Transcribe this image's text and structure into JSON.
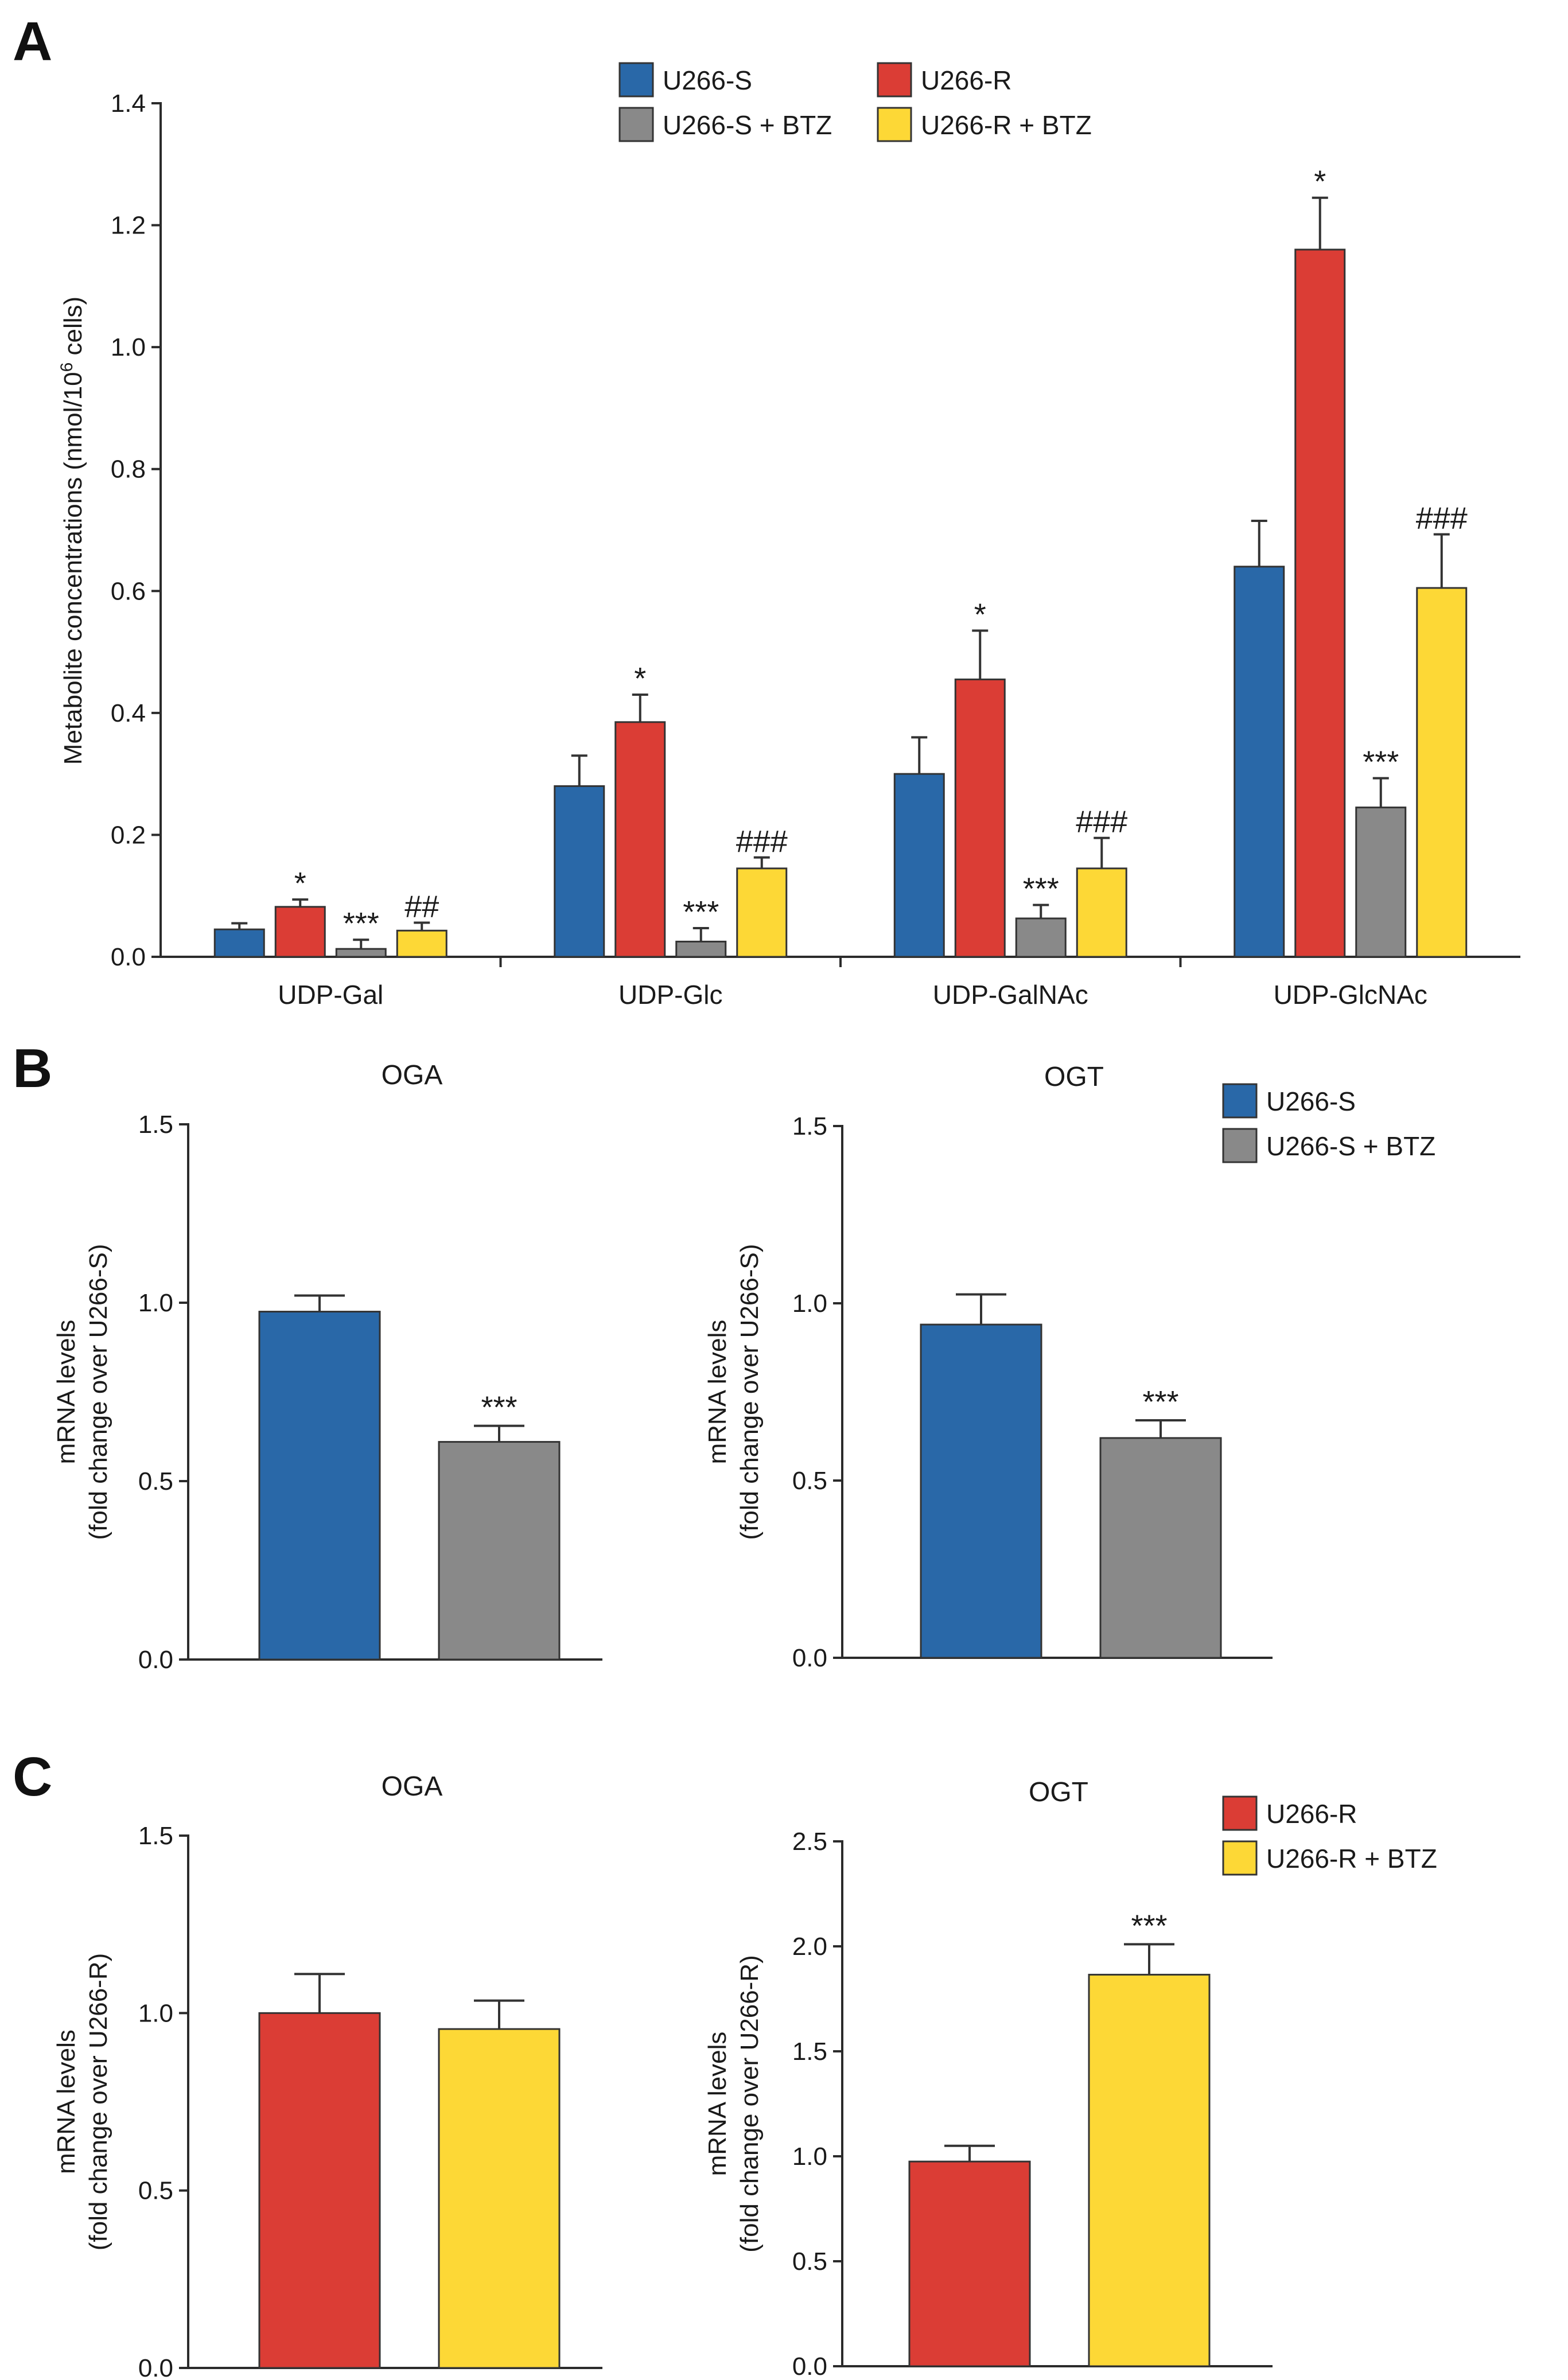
{
  "panels": {
    "a": "A",
    "b": "B",
    "c": "C"
  },
  "legend_a": {
    "items": [
      {
        "label": "U266-S",
        "color": "#2968a8"
      },
      {
        "label": "U266-R",
        "color": "#db3d35"
      },
      {
        "label": "U266-S + BTZ",
        "color": "#898989"
      },
      {
        "label": "U266-R + BTZ",
        "color": "#fdd836"
      }
    ]
  },
  "legend_b": {
    "items": [
      {
        "label": "U266-S",
        "color": "#2968a8"
      },
      {
        "label": "U266-S + BTZ",
        "color": "#898989"
      }
    ]
  },
  "legend_c": {
    "items": [
      {
        "label": "U266-R",
        "color": "#db3d35"
      },
      {
        "label": "U266-R + BTZ",
        "color": "#fdd836"
      }
    ]
  },
  "chart_data": [
    {
      "id": "A",
      "type": "bar",
      "ylabel_main": "Metabolite concentrations (nmol/10",
      "ylabel_sup": "6",
      "ylabel_tail": " cells)",
      "ylim": [
        0,
        1.4
      ],
      "yticks": [
        "0.0",
        "0.2",
        "0.4",
        "0.6",
        "0.8",
        "1.0",
        "1.2",
        "1.4"
      ],
      "categories": [
        "UDP-Gal",
        "UDP-Glc",
        "UDP-GalNAc",
        "UDP-GlcNAc"
      ],
      "series": [
        {
          "name": "U266-S",
          "color": "#2968a8",
          "values": [
            0.045,
            0.28,
            0.3,
            0.64
          ],
          "errors": [
            0.01,
            0.05,
            0.06,
            0.075
          ],
          "sig": [
            "",
            "",
            "",
            ""
          ]
        },
        {
          "name": "U266-R",
          "color": "#db3d35",
          "values": [
            0.082,
            0.385,
            0.455,
            1.16
          ],
          "errors": [
            0.012,
            0.045,
            0.08,
            0.085
          ],
          "sig": [
            "*",
            "*",
            "*",
            "*"
          ]
        },
        {
          "name": "U266-S + BTZ",
          "color": "#898989",
          "values": [
            0.013,
            0.025,
            0.063,
            0.245
          ],
          "errors": [
            0.015,
            0.022,
            0.022,
            0.048
          ],
          "sig": [
            "***",
            "***",
            "***",
            "***"
          ]
        },
        {
          "name": "U266-R + BTZ",
          "color": "#fdd836",
          "values": [
            0.043,
            0.145,
            0.145,
            0.605
          ],
          "errors": [
            0.013,
            0.018,
            0.05,
            0.088
          ],
          "sig": [
            "##",
            "###",
            "###",
            "###"
          ]
        }
      ]
    },
    {
      "id": "B-OGA",
      "type": "bar",
      "title": "OGA",
      "ylabel1": "mRNA levels",
      "ylabel2": "(fold change over U266-S)",
      "ylim": [
        0,
        1.5
      ],
      "yticks": [
        "0.0",
        "0.5",
        "1.0",
        "1.5"
      ],
      "categories": [
        "U266-S",
        "U266-S + BTZ"
      ],
      "values": [
        0.975,
        0.61
      ],
      "errors": [
        0.045,
        0.045
      ],
      "colors": [
        "#2968a8",
        "#898989"
      ],
      "sig": [
        "",
        "***"
      ]
    },
    {
      "id": "B-OGT",
      "type": "bar",
      "title": "OGT",
      "ylabel1": "mRNA levels",
      "ylabel2": "(fold change over U266-S)",
      "ylim": [
        0,
        1.5
      ],
      "yticks": [
        "0.0",
        "0.5",
        "1.0",
        "1.5"
      ],
      "categories": [
        "U266-S",
        "U266-S + BTZ"
      ],
      "values": [
        0.94,
        0.62
      ],
      "errors": [
        0.085,
        0.05
      ],
      "colors": [
        "#2968a8",
        "#898989"
      ],
      "sig": [
        "",
        "***"
      ]
    },
    {
      "id": "C-OGA",
      "type": "bar",
      "title": "OGA",
      "ylabel1": "mRNA levels",
      "ylabel2": "(fold change over U266-R)",
      "ylim": [
        0,
        1.5
      ],
      "yticks": [
        "0.0",
        "0.5",
        "1.0",
        "1.5"
      ],
      "categories": [
        "U266-R",
        "U266-R + BTZ"
      ],
      "values": [
        1.0,
        0.955
      ],
      "errors": [
        0.11,
        0.08
      ],
      "colors": [
        "#db3d35",
        "#fdd836"
      ],
      "sig": [
        "",
        ""
      ]
    },
    {
      "id": "C-OGT",
      "type": "bar",
      "title": "OGT",
      "ylabel1": "mRNA levels",
      "ylabel2": "(fold change over U266-R)",
      "ylim": [
        0,
        2.5
      ],
      "yticks": [
        "0.0",
        "0.5",
        "1.0",
        "1.5",
        "2.0",
        "2.5"
      ],
      "categories": [
        "U266-R",
        "U266-R + BTZ"
      ],
      "values": [
        0.975,
        1.865
      ],
      "errors": [
        0.075,
        0.145
      ],
      "colors": [
        "#db3d35",
        "#fdd836"
      ],
      "sig": [
        "",
        "***"
      ]
    }
  ]
}
